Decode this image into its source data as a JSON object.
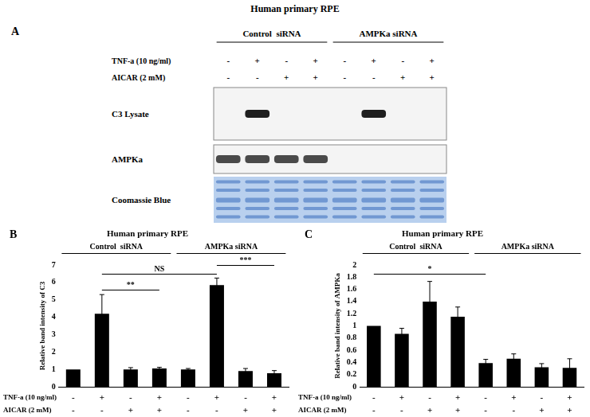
{
  "panel_a": {
    "label": "A",
    "title": "Human primary RPE",
    "groups": [
      {
        "label": "Control  siRNA",
        "lanes": 4
      },
      {
        "label": "AMPKa siRNA",
        "lanes": 4
      }
    ],
    "conditions": [
      {
        "label": "TNF-a (10 ng/ml)",
        "values": [
          "-",
          "+",
          "-",
          "+",
          "-",
          "+",
          "-",
          "+"
        ]
      },
      {
        "label": "AICAR (2 mM)",
        "values": [
          "-",
          "-",
          "+",
          "+",
          "-",
          "-",
          "+",
          "+"
        ]
      }
    ],
    "blots": [
      {
        "label": "C3 Lysate",
        "bands": [
          false,
          true,
          false,
          false,
          false,
          true,
          false,
          false
        ]
      },
      {
        "label": "AMPKa",
        "bands": [
          true,
          true,
          true,
          true,
          false,
          false,
          false,
          false
        ]
      },
      {
        "label": "Coomassie Blue",
        "stain": "coomassie"
      }
    ]
  },
  "chart_data": [
    {
      "type": "bar",
      "panel": "B",
      "title": "Human primary RPE",
      "categories": [
        null,
        null,
        null,
        null,
        null,
        null,
        null,
        null
      ],
      "groups": [
        {
          "label": "Control  siRNA",
          "lanes": 4
        },
        {
          "label": "AMPKa siRNA",
          "lanes": 4
        }
      ],
      "conditions": [
        {
          "label": "TNF-a (10 ng/ml)",
          "values": [
            "-",
            "+",
            "-",
            "+",
            "-",
            "+",
            "-",
            "+"
          ]
        },
        {
          "label": "AICAR (2 mM)",
          "values": [
            "-",
            "-",
            "+",
            "+",
            "-",
            "-",
            "+",
            "+"
          ]
        }
      ],
      "values": [
        1,
        4.2,
        1,
        1.05,
        1,
        5.85,
        0.9,
        0.78
      ],
      "errors": [
        0,
        1.1,
        0.1,
        0.07,
        0.05,
        0.4,
        0.15,
        0.15
      ],
      "color": "#000000",
      "y_label": "Relative band intensity of C3",
      "ylim": [
        0,
        7
      ],
      "yticks": [
        0,
        1,
        2,
        3,
        4,
        5,
        6,
        7
      ],
      "grid": false,
      "annotations": [
        {
          "text": "**",
          "from": 1,
          "to": 3,
          "y": 5.6
        },
        {
          "text": "NS",
          "from": 1,
          "to": 5,
          "y": 6.5
        },
        {
          "text": "***",
          "from": 5,
          "to": 7,
          "y": 7
        }
      ]
    },
    {
      "type": "bar",
      "panel": "C",
      "title": "Human primary RPE",
      "categories": [
        null,
        null,
        null,
        null,
        null,
        null,
        null,
        null
      ],
      "groups": [
        {
          "label": "Control  siRNA",
          "lanes": 4
        },
        {
          "label": "AMPKa siRNA",
          "lanes": 4
        }
      ],
      "conditions": [
        {
          "label": "TNF-a (10 ng/ml)",
          "values": [
            "-",
            "+",
            "-",
            "+",
            "-",
            "+",
            "-",
            "+"
          ]
        },
        {
          "label": "AICAR (2 mM)",
          "values": [
            "-",
            "-",
            "+",
            "+",
            "-",
            "-",
            "+",
            "+"
          ]
        }
      ],
      "values": [
        1,
        0.87,
        1.4,
        1.15,
        0.39,
        0.46,
        0.32,
        0.31
      ],
      "errors": [
        0,
        0.09,
        0.33,
        0.16,
        0.06,
        0.08,
        0.06,
        0.15
      ],
      "color": "#000000",
      "y_label": "Relative band intensity of AMPKa",
      "ylim": [
        0,
        2
      ],
      "yticks": [
        0,
        0.2,
        0.4,
        0.6,
        0.8,
        1,
        1.2,
        1.4,
        1.6,
        1.8,
        2
      ],
      "grid": false,
      "annotations": [
        {
          "text": "*",
          "from": 0,
          "to": 4,
          "y": 1.85
        }
      ]
    }
  ]
}
